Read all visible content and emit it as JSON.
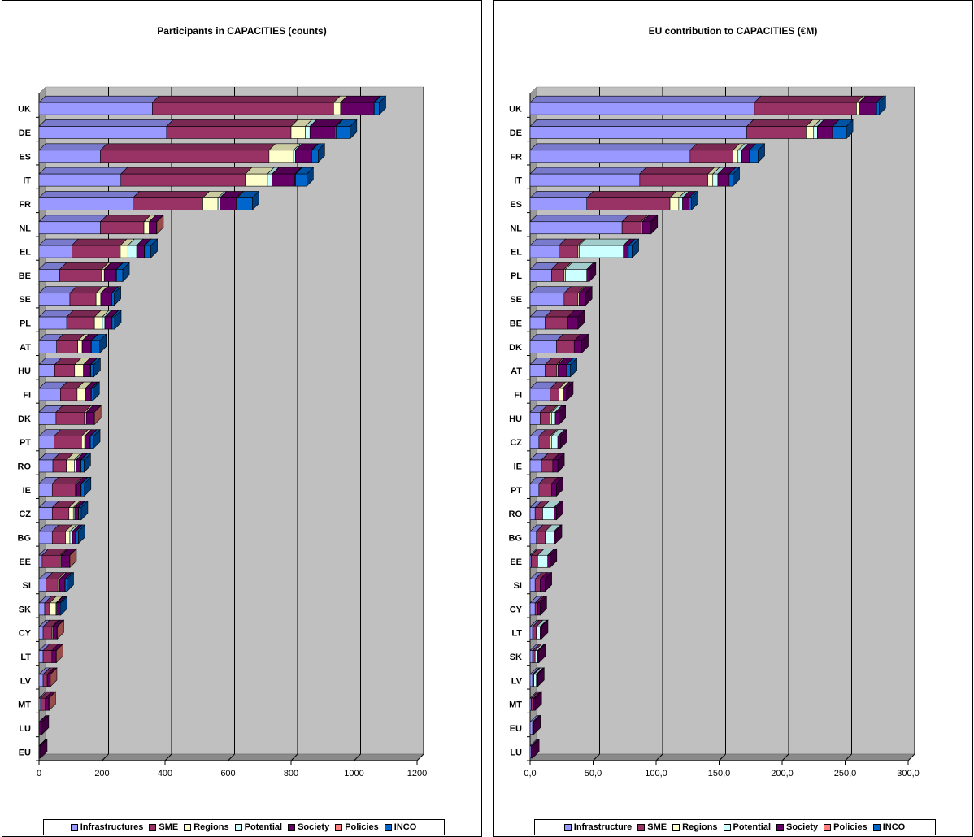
{
  "chart_data": [
    {
      "type": "bar",
      "orientation": "horizontal",
      "stacked": true,
      "title": "Participants in CAPACITIES (counts)",
      "xlim": [
        0,
        1200
      ],
      "xticks": [
        "0",
        "200",
        "400",
        "600",
        "800",
        "1000",
        "1200"
      ],
      "grid": true,
      "legend_position": "bottom",
      "categories": [
        "UK",
        "DE",
        "ES",
        "IT",
        "FR",
        "NL",
        "EL",
        "BE",
        "SE",
        "PL",
        "AT",
        "HU",
        "FI",
        "DK",
        "PT",
        "RO",
        "IE",
        "CZ",
        "BG",
        "EE",
        "SI",
        "SK",
        "CY",
        "LT",
        "LV",
        "MT",
        "LU",
        "EU"
      ],
      "series": [
        {
          "name": "Infrastructures",
          "color": "#9999ff",
          "values": [
            360,
            405,
            195,
            260,
            298,
            195,
            104,
            66,
            98,
            88,
            56,
            50,
            68,
            54,
            48,
            44,
            42,
            42,
            42,
            10,
            22,
            18,
            13,
            13,
            13,
            5,
            2,
            2
          ]
        },
        {
          "name": "SME",
          "color": "#993366",
          "values": [
            575,
            395,
            535,
            395,
            222,
            138,
            154,
            133,
            83,
            88,
            67,
            63,
            53,
            90,
            87,
            43,
            73,
            53,
            42,
            58,
            38,
            16,
            28,
            28,
            13,
            15,
            0,
            0
          ]
        },
        {
          "name": "Regions",
          "color": "#ffffcc",
          "values": [
            22,
            45,
            78,
            70,
            48,
            17,
            24,
            8,
            15,
            25,
            14,
            28,
            26,
            6,
            10,
            25,
            4,
            14,
            14,
            3,
            5,
            20,
            3,
            0,
            0,
            0,
            0,
            0
          ]
        },
        {
          "name": "Potential",
          "color": "#ccffff",
          "values": [
            0,
            15,
            6,
            15,
            6,
            0,
            28,
            0,
            0,
            8,
            0,
            0,
            0,
            0,
            0,
            6,
            0,
            4,
            8,
            0,
            0,
            2,
            0,
            0,
            0,
            0,
            0,
            0
          ]
        },
        {
          "name": "Society",
          "color": "#660066",
          "values": [
            105,
            80,
            50,
            72,
            52,
            23,
            24,
            38,
            34,
            22,
            28,
            22,
            18,
            25,
            17,
            14,
            14,
            12,
            10,
            26,
            17,
            8,
            13,
            13,
            9,
            11,
            8,
            3
          ]
        },
        {
          "name": "Policies",
          "color": "#ff8080",
          "values": [
            2,
            3,
            2,
            2,
            3,
            1,
            1,
            1,
            1,
            1,
            1,
            1,
            1,
            1,
            1,
            1,
            1,
            1,
            1,
            1,
            1,
            1,
            1,
            1,
            1,
            1,
            0,
            0
          ]
        },
        {
          "name": "INCO",
          "color": "#0066cc",
          "values": [
            16,
            45,
            20,
            36,
            48,
            0,
            20,
            20,
            8,
            8,
            27,
            10,
            5,
            0,
            10,
            10,
            10,
            8,
            8,
            0,
            6,
            4,
            0,
            0,
            0,
            0,
            0,
            0
          ]
        }
      ]
    },
    {
      "type": "bar",
      "orientation": "horizontal",
      "stacked": true,
      "title": "EU contribution to CAPACITIES (€M)",
      "xlim": [
        0,
        300
      ],
      "xticks": [
        "0,0",
        "50,0",
        "100,0",
        "150,0",
        "200,0",
        "250,0",
        "300,0"
      ],
      "grid": true,
      "legend_position": "bottom",
      "categories": [
        "UK",
        "DE",
        "FR",
        "IT",
        "ES",
        "NL",
        "EL",
        "PL",
        "SE",
        "BE",
        "DK",
        "AT",
        "FI",
        "HU",
        "CZ",
        "IE",
        "PT",
        "RO",
        "BG",
        "EE",
        "SI",
        "CY",
        "LT",
        "SK",
        "LV",
        "MT",
        "EU",
        "LU"
      ],
      "series": [
        {
          "name": "Infrastructure",
          "color": "#9999ff",
          "values": [
            178,
            172,
            127,
            87,
            45,
            73,
            23,
            17,
            27,
            12,
            21,
            12,
            16,
            8,
            7,
            9,
            7,
            4,
            5,
            1,
            4,
            4,
            2,
            2,
            2,
            1,
            2,
            1
          ]
        },
        {
          "name": "SME",
          "color": "#993366",
          "values": [
            81,
            47,
            34,
            54,
            66,
            15,
            15,
            10,
            11,
            18,
            14,
            9,
            7,
            8,
            9,
            9,
            10,
            6,
            7,
            5,
            4,
            2,
            3,
            2,
            1,
            2,
            0,
            0
          ]
        },
        {
          "name": "Regions",
          "color": "#ffffcc",
          "values": [
            2,
            6,
            4,
            4,
            7,
            1,
            1,
            1,
            1,
            0,
            0,
            1,
            3,
            1,
            1,
            0,
            0,
            0,
            0,
            0,
            0,
            0,
            0,
            0,
            0,
            0,
            0,
            0
          ]
        },
        {
          "name": "Potential",
          "color": "#ccffff",
          "values": [
            0,
            3,
            3,
            4,
            3,
            0,
            35,
            17,
            0,
            0,
            0,
            0,
            0,
            3,
            5,
            0,
            0,
            9,
            7,
            8,
            0,
            0,
            3,
            2,
            2,
            0,
            0,
            0
          ]
        },
        {
          "name": "Society",
          "color": "#660066",
          "values": [
            14,
            12,
            6,
            9,
            5,
            7,
            4,
            2,
            5,
            8,
            6,
            7,
            3,
            3,
            2,
            4,
            4,
            2,
            1,
            2,
            4,
            2,
            1,
            1,
            1,
            1,
            1,
            1
          ]
        },
        {
          "name": "Policies",
          "color": "#ff8080",
          "values": [
            0,
            0,
            0,
            0,
            0,
            0,
            0,
            0,
            0,
            0,
            0,
            0,
            0,
            0,
            0,
            0,
            0,
            0,
            0,
            0,
            0,
            0,
            0,
            0,
            0,
            0,
            0,
            0
          ]
        },
        {
          "name": "INCO",
          "color": "#0066cc",
          "values": [
            2,
            11,
            7,
            3,
            2,
            0,
            3,
            0,
            0,
            0,
            0,
            3,
            0,
            0,
            0,
            0,
            0,
            0,
            0,
            0,
            0,
            0,
            0,
            0,
            0,
            0,
            0,
            0
          ]
        }
      ]
    }
  ]
}
